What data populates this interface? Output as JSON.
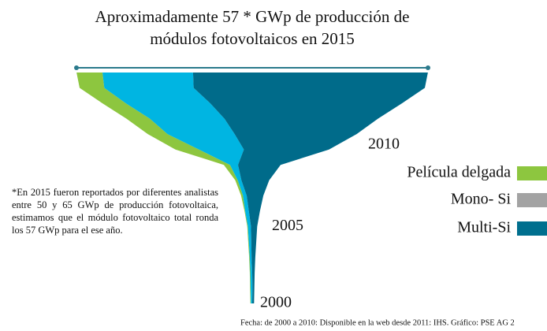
{
  "chart_data": {
    "type": "stream",
    "title": [
      "Aproximadamente 57 * GWp de producción de",
      "módulos fotovoltaicos en 2015"
    ],
    "categories": [
      "2000",
      null,
      null,
      null,
      null,
      "2005",
      null,
      null,
      null,
      null,
      "2010",
      null,
      null,
      null,
      null,
      null
    ],
    "series": [
      {
        "name": "Película delgada",
        "color": "#8dc63f",
        "legend_color": "#8dc63f",
        "values": [
          0.1,
          0.1,
          0.1,
          0.1,
          0.1,
          0.1,
          0.1,
          0.3,
          0.4,
          1.0,
          3.8,
          3.2,
          3.8,
          3.8,
          4.0,
          4.2
        ]
      },
      {
        "name": "Mono- Si",
        "color": "#00b5e2",
        "legend_color": "#a3a3a3",
        "values": [
          0.2,
          0.3,
          0.3,
          0.3,
          0.4,
          0.5,
          0.6,
          0.6,
          0.6,
          1.3,
          7.3,
          10.9,
          12.1,
          13.7,
          14.5,
          14.7
        ]
      },
      {
        "name": "Multi-Si",
        "color": "#006b8a",
        "legend_color": "#006f8e",
        "values": [
          0.3,
          0.3,
          0.4,
          0.6,
          0.8,
          1.0,
          1.8,
          2.7,
          4.5,
          6.9,
          13.8,
          19.8,
          24.9,
          31.1,
          37.5,
          38.1
        ]
      }
    ],
    "note": "*En 2015 fueron reportados por diferentes analistas entre 50 y 65 GWp de producción fotovoltaica, estimamos que el módulo fotovoltaico total ronda los 57 GWp para el ese año.",
    "source": "Fecha: de 2000 a 2010: Disponible en la web desde 2011: IHS. Gráfico: PSE AG 2"
  }
}
